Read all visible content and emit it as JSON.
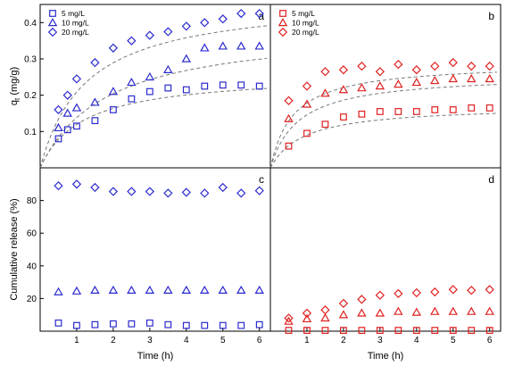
{
  "chart_data": [
    {
      "panel": "a",
      "type": "scatter",
      "ylabel": "q",
      "ylabel_sub": "t",
      "ylabel_unit": " (mg/g)",
      "xlim": [
        0,
        6.3
      ],
      "ylim": [
        0,
        0.45
      ],
      "yticks": [
        0.1,
        0.2,
        0.3,
        0.4
      ],
      "ytick_labels": [
        "0.1",
        "0.2",
        "0.3",
        "0.4"
      ],
      "fit_curves": true,
      "legend_position": "top-left",
      "series": [
        {
          "name": "5 mg/L",
          "marker": "square",
          "color": "#2b2bcf",
          "x": [
            0.5,
            0.75,
            1,
            1.5,
            2,
            2.5,
            3,
            3.5,
            4,
            4.5,
            5,
            5.5,
            6
          ],
          "y": [
            0.08,
            0.105,
            0.115,
            0.13,
            0.16,
            0.19,
            0.21,
            0.22,
            0.215,
            0.225,
            0.228,
            0.228,
            0.225
          ],
          "fit": {
            "qe": 0.26,
            "k": 0.85
          }
        },
        {
          "name": "10 mg/L",
          "marker": "triangle",
          "color": "#2b2bcf",
          "x": [
            0.5,
            0.75,
            1,
            1.5,
            2,
            2.5,
            3,
            3.5,
            4,
            4.5,
            5,
            5.5,
            6
          ],
          "y": [
            0.11,
            0.15,
            0.165,
            0.18,
            0.21,
            0.235,
            0.25,
            0.27,
            0.3,
            0.33,
            0.335,
            0.335,
            0.335
          ],
          "fit": {
            "qe": 0.39,
            "k": 0.55
          }
        },
        {
          "name": "20 mg/L",
          "marker": "diamond",
          "color": "#2b2bcf",
          "x": [
            0.5,
            0.75,
            1,
            1.5,
            2,
            2.5,
            3,
            3.5,
            4,
            4.5,
            5,
            5.5,
            6
          ],
          "y": [
            0.16,
            0.2,
            0.245,
            0.29,
            0.33,
            0.35,
            0.365,
            0.375,
            0.39,
            0.4,
            0.41,
            0.425,
            0.425
          ],
          "fit": {
            "qe": 0.47,
            "k": 0.8
          }
        }
      ]
    },
    {
      "panel": "b",
      "type": "scatter",
      "xlim": [
        0,
        6.3
      ],
      "ylim": [
        0,
        0.45
      ],
      "fit_curves": true,
      "legend_position": "top-left",
      "series": [
        {
          "name": "5 mg/L",
          "marker": "square",
          "color": "#e02020",
          "x": [
            0.5,
            1,
            1.5,
            2,
            2.5,
            3,
            3.5,
            4,
            4.5,
            5,
            5.5,
            6
          ],
          "y": [
            0.06,
            0.095,
            0.12,
            0.14,
            0.148,
            0.155,
            0.155,
            0.155,
            0.16,
            0.16,
            0.165,
            0.165
          ],
          "fit": {
            "qe": 0.172,
            "k": 1.1
          }
        },
        {
          "name": "10 mg/L",
          "marker": "triangle",
          "color": "#e02020",
          "x": [
            0.5,
            1,
            1.5,
            2,
            2.5,
            3,
            3.5,
            4,
            4.5,
            5,
            5.5,
            6
          ],
          "y": [
            0.135,
            0.175,
            0.205,
            0.215,
            0.22,
            0.225,
            0.23,
            0.235,
            0.24,
            0.245,
            0.245,
            0.245
          ],
          "fit": {
            "qe": 0.258,
            "k": 1.3
          }
        },
        {
          "name": "20 mg/L",
          "marker": "diamond",
          "color": "#e02020",
          "x": [
            0.5,
            1,
            1.5,
            2,
            2.5,
            3,
            3.5,
            4,
            4.5,
            5,
            5.5,
            6
          ],
          "y": [
            0.185,
            0.225,
            0.265,
            0.27,
            0.28,
            0.265,
            0.285,
            0.27,
            0.28,
            0.29,
            0.28,
            0.28
          ],
          "fit": {
            "qe": 0.29,
            "k": 1.6
          }
        }
      ]
    },
    {
      "panel": "c",
      "type": "scatter",
      "xlabel": "Time (h)",
      "ylabel": "Cumulative release (%)",
      "xlim": [
        0,
        6.3
      ],
      "ylim": [
        0,
        100
      ],
      "xticks": [
        1,
        2,
        3,
        4,
        5,
        6
      ],
      "yticks": [
        20,
        40,
        60,
        80
      ],
      "ytick_labels": [
        "20",
        "40",
        "60",
        "80"
      ],
      "series": [
        {
          "name": "5 mg/L",
          "marker": "square",
          "color": "#2b2bcf",
          "x": [
            0.5,
            1,
            1.5,
            2,
            2.5,
            3,
            3.5,
            4,
            4.5,
            5,
            5.5,
            6
          ],
          "y": [
            5,
            3.5,
            4,
            4.5,
            4.5,
            5,
            4,
            3.5,
            3.5,
            3.5,
            3.5,
            4
          ]
        },
        {
          "name": "10 mg/L",
          "marker": "triangle",
          "color": "#2b2bcf",
          "x": [
            0.5,
            1,
            1.5,
            2,
            2.5,
            3,
            3.5,
            4,
            4.5,
            5,
            5.5,
            6
          ],
          "y": [
            24,
            24.5,
            25,
            25,
            25,
            25,
            25,
            25,
            25,
            25,
            25,
            25
          ]
        },
        {
          "name": "20 mg/L",
          "marker": "diamond",
          "color": "#2b2bcf",
          "x": [
            0.5,
            1,
            1.5,
            2,
            2.5,
            3,
            3.5,
            4,
            4.5,
            5,
            5.5,
            6
          ],
          "y": [
            89,
            90,
            88,
            85.5,
            85.5,
            85.5,
            84.5,
            85,
            84.5,
            88,
            84.5,
            86
          ]
        }
      ]
    },
    {
      "panel": "d",
      "type": "scatter",
      "xlabel": "Time (h)",
      "xlim": [
        0,
        6.3
      ],
      "ylim": [
        0,
        100
      ],
      "xticks": [
        1,
        2,
        3,
        4,
        5,
        6
      ],
      "series": [
        {
          "name": "5 mg/L",
          "marker": "square",
          "color": "#e02020",
          "x": [
            0.5,
            1,
            1.5,
            2,
            2.5,
            3,
            3.5,
            4,
            4.5,
            5,
            5.5,
            6
          ],
          "y": [
            0.5,
            0.5,
            0.5,
            0.5,
            0.5,
            0.5,
            0.5,
            0.5,
            0.5,
            0.5,
            0.5,
            0.5
          ]
        },
        {
          "name": "10 mg/L",
          "marker": "triangle",
          "color": "#e02020",
          "x": [
            0.5,
            1,
            1.5,
            2,
            2.5,
            3,
            3.5,
            4,
            4.5,
            5,
            5.5,
            6
          ],
          "y": [
            6,
            7.5,
            8,
            10,
            11,
            11,
            12,
            11.5,
            12,
            12,
            12,
            12
          ]
        },
        {
          "name": "20 mg/L",
          "marker": "diamond",
          "color": "#e02020",
          "x": [
            0.5,
            1,
            1.5,
            2,
            2.5,
            3,
            3.5,
            4,
            4.5,
            5,
            5.5,
            6
          ],
          "y": [
            8,
            11,
            13,
            17,
            19.5,
            22,
            23,
            23.5,
            24,
            25.5,
            25,
            25.5
          ]
        }
      ]
    }
  ]
}
